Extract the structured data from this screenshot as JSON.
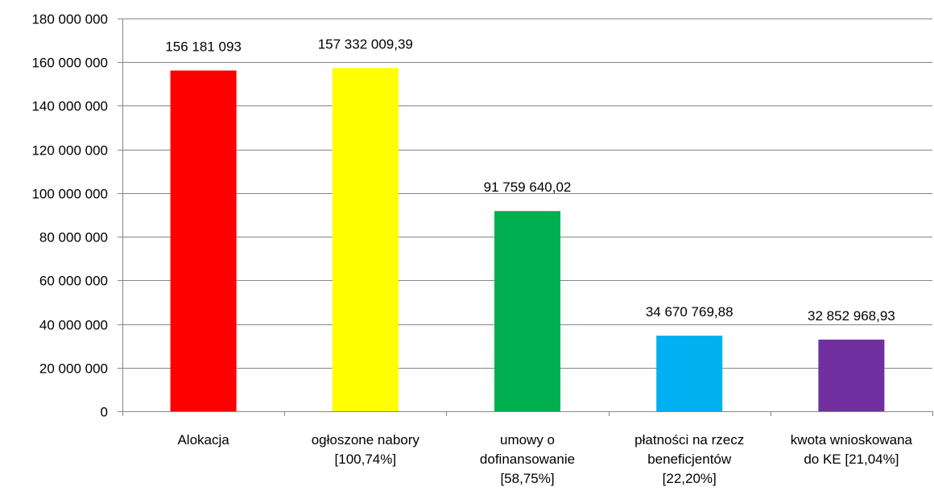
{
  "chart_data": {
    "type": "bar",
    "title": "",
    "xlabel": "",
    "ylabel": "",
    "ylim": [
      0,
      180000000
    ],
    "yticks": [
      0,
      20000000,
      40000000,
      60000000,
      80000000,
      100000000,
      120000000,
      140000000,
      160000000,
      180000000
    ],
    "ytick_labels": [
      "0",
      "20 000 000",
      "40 000 000",
      "60 000 000",
      "80 000 000",
      "100 000 000",
      "120 000 000",
      "140 000 000",
      "160 000 000",
      "180 000 000"
    ],
    "grid": true,
    "legend": "none",
    "categories": [
      "Alokacja",
      "ogłoszone nabory [100,74%]",
      "umowy o dofinansowanie [58,75%]",
      "płatności na rzecz beneficjentów [22,20%]",
      "kwota wnioskowana do KE [21,04%]"
    ],
    "category_lines": [
      [
        "Alokacja"
      ],
      [
        "ogłoszone nabory",
        "[100,74%]"
      ],
      [
        "umowy o",
        "dofinansowanie",
        "[58,75%]"
      ],
      [
        "płatności na rzecz",
        "beneficjentów",
        "[22,20%]"
      ],
      [
        "kwota wnioskowana",
        "do KE [21,04%]"
      ]
    ],
    "values": [
      156181093,
      157332009.39,
      91759640.02,
      34670769.88,
      32852968.93
    ],
    "data_labels": [
      "156 181 093",
      "157 332 009,39",
      "91 759 640,02",
      "34 670 769,88",
      "32 852 968,93"
    ],
    "colors": [
      "#ff0000",
      "#ffff00",
      "#00b050",
      "#00b0f0",
      "#7030a0"
    ]
  }
}
